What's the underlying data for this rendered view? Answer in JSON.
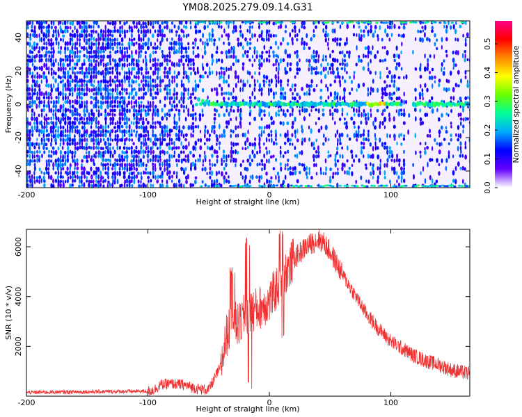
{
  "title": "YM08.2025.279.09.14.G31",
  "chart_data": [
    {
      "type": "heatmap",
      "xlabel": "Height of straight line (km)",
      "ylabel": "Frequency (Hz)",
      "xlim": [
        -200,
        165
      ],
      "ylim": [
        -50,
        50
      ],
      "xticks": [
        -200,
        -100,
        0,
        100
      ],
      "yticks": [
        -40,
        -20,
        0,
        20,
        40
      ],
      "colorbar": {
        "label": "Normalized spectral amplitude",
        "range": [
          0,
          0.58
        ],
        "ticks": [
          "0.0",
          "0.1",
          "0.2",
          "0.3",
          "0.4",
          "0.5"
        ],
        "colors": [
          "#ffffff",
          "#6600ff",
          "#0000ff",
          "#00aaff",
          "#00ff99",
          "#66ff00",
          "#ffff00",
          "#ff8800",
          "#ff0000",
          "#ff0088"
        ]
      },
      "features": {
        "carrier_frequency_hz": 0,
        "carrier_start_km": -60,
        "gap_km": [
          110,
          118
        ],
        "edge_lines_hz": [
          -49,
          49
        ]
      }
    },
    {
      "type": "line",
      "xlabel": "Height of straight line (km)",
      "ylabel": "SNR (10 * v/v)",
      "xlim": [
        -200,
        165
      ],
      "ylim": [
        0,
        6700
      ],
      "xticks": [
        -200,
        -100,
        0,
        100
      ],
      "yticks": [
        2000,
        4000,
        6000
      ],
      "color": "#f03030",
      "profile": {
        "x": [
          -200,
          -100,
          -95,
          -90,
          -80,
          -70,
          -60,
          -50,
          -40,
          -35,
          -30,
          -25,
          -20,
          -10,
          0,
          10,
          20,
          30,
          40,
          45,
          50,
          60,
          70,
          80,
          90,
          100,
          110,
          120,
          130,
          140,
          150,
          165
        ],
        "y": [
          150,
          200,
          250,
          450,
          500,
          450,
          300,
          250,
          1200,
          2500,
          3000,
          2800,
          3300,
          3500,
          3800,
          4700,
          5500,
          6000,
          6300,
          6150,
          5800,
          4900,
          4100,
          3300,
          2700,
          2200,
          1900,
          1600,
          1400,
          1250,
          1050,
          900
        ]
      }
    }
  ]
}
